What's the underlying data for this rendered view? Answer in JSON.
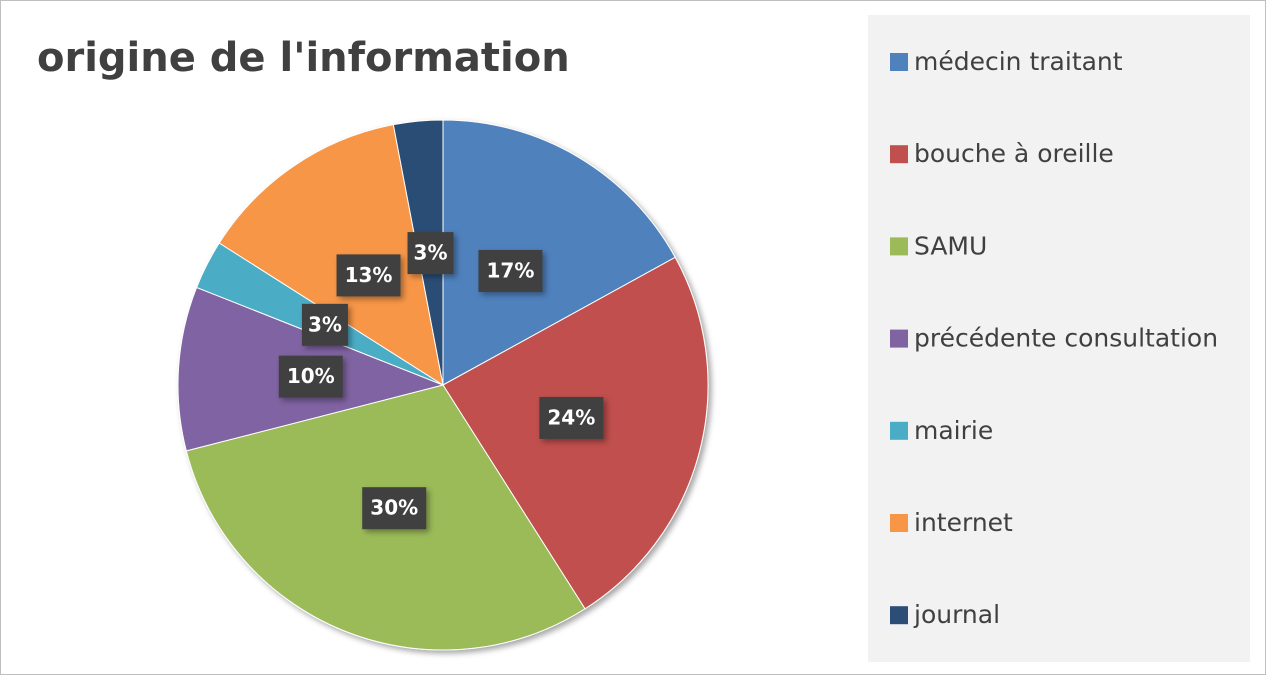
{
  "chart_data": {
    "type": "pie",
    "title": "origine de l'information",
    "categories": [
      "médecin traitant",
      "bouche à oreille",
      "SAMU",
      "précédente consultation",
      "mairie",
      "internet",
      "journal"
    ],
    "values": [
      17,
      24,
      30,
      10,
      3,
      13,
      3
    ],
    "value_labels": [
      "17%",
      "24%",
      "30%",
      "10%",
      "3%",
      "13%",
      "3%"
    ],
    "colors": [
      "#4f81bd",
      "#c0504d",
      "#9bbb59",
      "#8064a2",
      "#4bacc6",
      "#f79646",
      "#2c4d75"
    ],
    "legend": "right"
  }
}
